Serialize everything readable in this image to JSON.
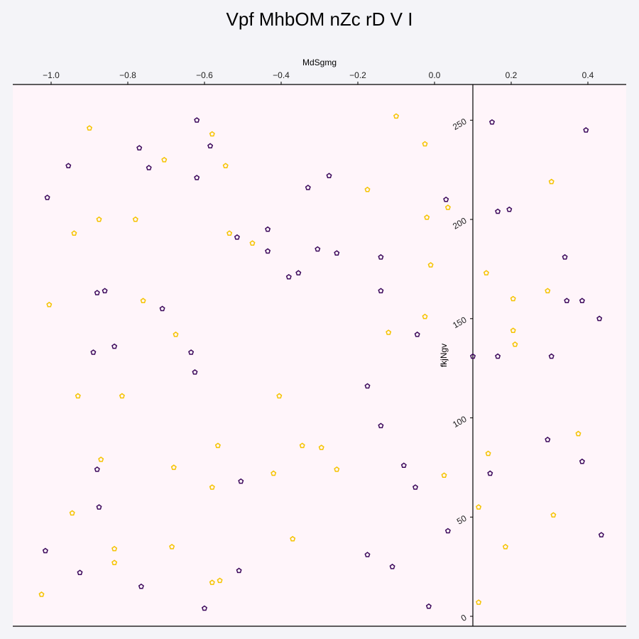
{
  "chart_data": {
    "type": "scatter",
    "title": "Vpf MhbOM nZc rD V I",
    "xlabel": "MdSgmg",
    "ylabel": "fkjNgv",
    "xlim": [
      -1.1,
      0.5
    ],
    "ylim": [
      -5,
      268
    ],
    "xticks": [
      -1.0,
      -0.8,
      -0.6,
      -0.4,
      -0.2,
      0.0,
      0.2,
      0.4
    ],
    "xtick_labels": [
      "−1.0",
      "−0.8",
      "−0.6",
      "−0.4",
      "−0.2",
      "0.0",
      "0.2",
      "0.4"
    ],
    "yticks": [
      0,
      50,
      100,
      150,
      200,
      250
    ],
    "ytick_labels": [
      "0",
      "50",
      "100",
      "150",
      "200",
      "250"
    ],
    "x_axis_position": "top",
    "y_axis_at_x": 0.1,
    "grid": false,
    "marker": "pentagon",
    "plot_background": "#fff5fa",
    "series": [
      {
        "color": "#3d0a5c",
        "points": [
          [
            -0.62,
            250
          ],
          [
            -0.77,
            236
          ],
          [
            -0.585,
            237
          ],
          [
            -0.955,
            227
          ],
          [
            -0.745,
            226
          ],
          [
            -0.62,
            221
          ],
          [
            -0.275,
            222
          ],
          [
            -0.33,
            216
          ],
          [
            -1.01,
            211
          ],
          [
            0.03,
            210
          ],
          [
            0.165,
            204
          ],
          [
            0.195,
            205
          ],
          [
            -0.435,
            195
          ],
          [
            -0.515,
            191
          ],
          [
            -0.435,
            184
          ],
          [
            -0.305,
            185
          ],
          [
            -0.255,
            183
          ],
          [
            -0.14,
            181
          ],
          [
            -0.355,
            173
          ],
          [
            -0.38,
            171
          ],
          [
            -0.88,
            163
          ],
          [
            -0.86,
            164
          ],
          [
            -0.14,
            164
          ],
          [
            -0.71,
            155
          ],
          [
            -0.045,
            142
          ],
          [
            -0.835,
            136
          ],
          [
            -0.89,
            133
          ],
          [
            -0.635,
            133
          ],
          [
            -0.625,
            123
          ],
          [
            -0.175,
            116
          ],
          [
            0.1,
            131
          ],
          [
            0.165,
            131
          ],
          [
            -0.14,
            96
          ],
          [
            -0.08,
            76
          ],
          [
            -0.05,
            65
          ],
          [
            -0.505,
            68
          ],
          [
            -0.88,
            74
          ],
          [
            -0.875,
            55
          ],
          [
            0.035,
            43
          ],
          [
            -1.015,
            33
          ],
          [
            -0.925,
            22
          ],
          [
            -0.175,
            31
          ],
          [
            -0.11,
            25
          ],
          [
            -0.51,
            23
          ],
          [
            -0.765,
            15
          ],
          [
            -0.6,
            4
          ],
          [
            -0.015,
            5
          ],
          [
            0.15,
            249
          ],
          [
            0.395,
            245
          ],
          [
            0.34,
            181
          ],
          [
            0.345,
            159
          ],
          [
            0.385,
            159
          ],
          [
            0.43,
            150
          ],
          [
            0.305,
            131
          ],
          [
            0.295,
            89
          ],
          [
            0.385,
            78
          ],
          [
            0.145,
            72
          ],
          [
            0.435,
            41
          ]
        ]
      },
      {
        "color": "#f5c400",
        "points": [
          [
            -0.9,
            246
          ],
          [
            -0.58,
            243
          ],
          [
            -0.1,
            252
          ],
          [
            -0.025,
            238
          ],
          [
            -0.705,
            230
          ],
          [
            -0.545,
            227
          ],
          [
            -0.175,
            215
          ],
          [
            -0.02,
            201
          ],
          [
            0.035,
            206
          ],
          [
            -0.875,
            200
          ],
          [
            -0.78,
            200
          ],
          [
            -0.94,
            193
          ],
          [
            -0.535,
            193
          ],
          [
            -0.475,
            188
          ],
          [
            -0.01,
            177
          ],
          [
            -1.005,
            157
          ],
          [
            -0.76,
            159
          ],
          [
            -0.675,
            142
          ],
          [
            -0.12,
            143
          ],
          [
            -0.025,
            151
          ],
          [
            -0.93,
            111
          ],
          [
            -0.815,
            111
          ],
          [
            -0.405,
            111
          ],
          [
            -0.565,
            86
          ],
          [
            -0.345,
            86
          ],
          [
            -0.295,
            85
          ],
          [
            -0.87,
            79
          ],
          [
            -0.68,
            75
          ],
          [
            -0.255,
            74
          ],
          [
            -0.42,
            72
          ],
          [
            -0.58,
            65
          ],
          [
            0.025,
            71
          ],
          [
            -0.945,
            52
          ],
          [
            -0.835,
            34
          ],
          [
            -0.685,
            35
          ],
          [
            -0.37,
            39
          ],
          [
            -0.835,
            27
          ],
          [
            -0.56,
            18
          ],
          [
            -0.58,
            17
          ],
          [
            -1.025,
            11
          ],
          [
            0.305,
            219
          ],
          [
            0.135,
            173
          ],
          [
            0.295,
            164
          ],
          [
            0.205,
            160
          ],
          [
            0.205,
            144
          ],
          [
            0.21,
            137
          ],
          [
            0.375,
            92
          ],
          [
            0.14,
            82
          ],
          [
            0.115,
            55
          ],
          [
            0.31,
            51
          ],
          [
            0.185,
            35
          ],
          [
            0.115,
            7
          ]
        ]
      }
    ]
  }
}
